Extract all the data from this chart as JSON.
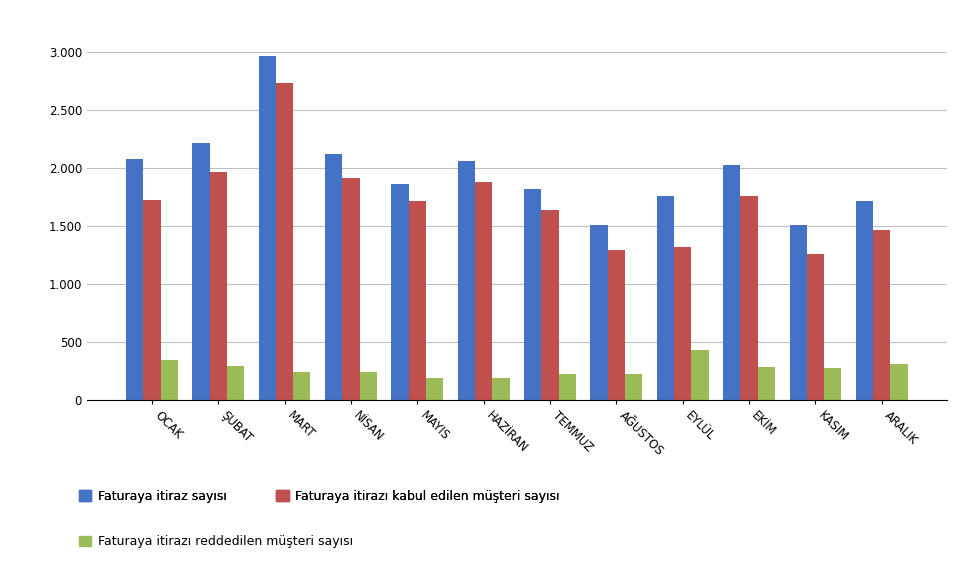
{
  "categories": [
    "OCAK",
    "ŞUBAT",
    "MART",
    "NİSAN",
    "MAYIS",
    "HAZİRAN",
    "TEMMUZ",
    "AĞUSTOS",
    "EYLÜL",
    "EKİM",
    "KASIM",
    "ARALIK"
  ],
  "series": [
    {
      "label": "Faturaya itiraz sayısı",
      "color": "#4472C4",
      "values": [
        2075,
        2210,
        2960,
        2120,
        1860,
        2060,
        1820,
        1505,
        1755,
        2020,
        1505,
        1710
      ]
    },
    {
      "label": "Faturaya itirazı kabul edilen müşteri sayısı",
      "color": "#C0504D",
      "values": [
        1720,
        1960,
        2730,
        1910,
        1710,
        1880,
        1635,
        1295,
        1320,
        1755,
        1255,
        1465
      ]
    },
    {
      "label": "Faturaya itirazı reddedilen müşteri sayısı",
      "color": "#9BBB59",
      "values": [
        340,
        290,
        240,
        240,
        190,
        190,
        220,
        225,
        430,
        280,
        270,
        310
      ]
    }
  ],
  "ylim": [
    0,
    3200
  ],
  "yticks": [
    0,
    500,
    1000,
    1500,
    2000,
    2500,
    3000
  ],
  "ytick_labels": [
    "0",
    "500",
    "1.000",
    "1.500",
    "2.000",
    "2.500",
    "3.000"
  ],
  "figsize": [
    9.66,
    5.71
  ],
  "dpi": 100,
  "background_color": "#FFFFFF",
  "grid_color": "#BFBFBF",
  "legend_fontsize": 9,
  "tick_fontsize": 8.5,
  "bar_width": 0.26
}
